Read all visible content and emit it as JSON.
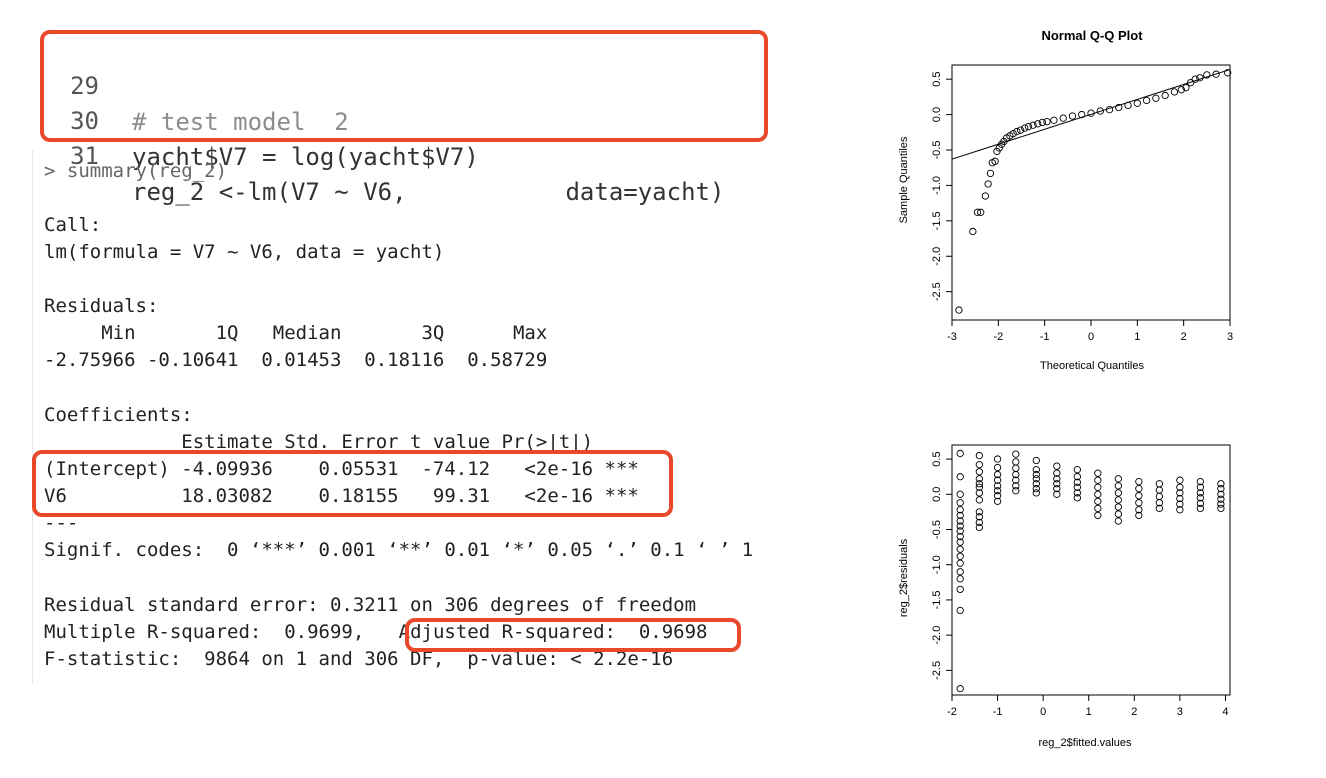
{
  "editor": {
    "lines": [
      {
        "num": "29",
        "text": "# test model  2"
      },
      {
        "num": "30",
        "text": "yacht$V7 = log(yacht$V7)"
      },
      {
        "num": "31",
        "text": "reg_2 <-lm(V7 ~ V6,           data=yacht)"
      }
    ]
  },
  "console": {
    "prompt": ">",
    "command": "summary(reg_2)",
    "call_label": "Call:",
    "call_formula": "lm(formula = V7 ~ V6, data = yacht)",
    "residuals_label": "Residuals:",
    "residuals_header": "     Min       1Q   Median       3Q      Max",
    "residuals_values": "-2.75966 -0.10641  0.01453  0.18116  0.58729",
    "coefficients_label": "Coefficients:",
    "coef_header": "            Estimate Std. Error t value Pr(>|t|)",
    "coef_rows": [
      "(Intercept) -4.09936    0.05531  -74.12   <2e-16 ***",
      "V6          18.03082    0.18155   99.31   <2e-16 ***"
    ],
    "separator": "---",
    "signif_codes": "Signif. codes:  0 ‘***’ 0.001 ‘**’ 0.01 ‘*’ 0.05 ‘.’ 0.1 ‘ ’ 1",
    "rse": "Residual standard error: 0.3211 on 306 degrees of freedom",
    "multiple_r2": "Multiple R-squared:  0.9699,",
    "adjusted_r2": "Adjusted R-squared:  0.9698",
    "fstat": "F-statistic:  9864 on 1 and 306 DF,  p-value: < 2.2e-16"
  },
  "highlight_color": "#e8492b",
  "chart_data": [
    {
      "type": "scatter",
      "title": "Normal Q-Q Plot",
      "xlabel": "Theoretical Quantiles",
      "ylabel": "Sample Quantiles",
      "xlim": [
        -3,
        3
      ],
      "ylim": [
        -2.9,
        0.7
      ],
      "x_ticks": [
        "-3",
        "-2",
        "-1",
        "0",
        "1",
        "2",
        "3"
      ],
      "y_ticks": [
        "-2.5",
        "-2.0",
        "-1.5",
        "-1.0",
        "-0.5",
        "0.0",
        "0.5"
      ],
      "reference_line": {
        "x": [
          -3.1,
          3.3
        ],
        "y": [
          -0.65,
          0.7
        ]
      },
      "points": {
        "x": [
          -2.85,
          -2.55,
          -2.45,
          -2.38,
          -2.28,
          -2.22,
          -2.17,
          -2.13,
          -2.07,
          -2.03,
          -1.98,
          -1.93,
          -1.88,
          -1.82,
          -1.75,
          -1.68,
          -1.6,
          -1.52,
          -1.43,
          -1.35,
          -1.25,
          -1.15,
          -1.05,
          -0.95,
          -0.8,
          -0.6,
          -0.4,
          -0.2,
          0.0,
          0.2,
          0.4,
          0.6,
          0.8,
          1.0,
          1.2,
          1.4,
          1.6,
          1.8,
          1.95,
          2.05,
          2.15,
          2.25,
          2.35,
          2.5,
          2.7,
          2.95
        ],
        "y": [
          -2.76,
          -1.65,
          -1.38,
          -1.38,
          -1.15,
          -0.98,
          -0.83,
          -0.68,
          -0.66,
          -0.52,
          -0.47,
          -0.42,
          -0.38,
          -0.33,
          -0.3,
          -0.27,
          -0.24,
          -0.22,
          -0.19,
          -0.17,
          -0.15,
          -0.13,
          -0.11,
          -0.1,
          -0.08,
          -0.05,
          -0.02,
          0.0,
          0.02,
          0.05,
          0.07,
          0.1,
          0.13,
          0.16,
          0.2,
          0.23,
          0.27,
          0.32,
          0.35,
          0.38,
          0.45,
          0.5,
          0.52,
          0.56,
          0.57,
          0.59
        ]
      }
    },
    {
      "type": "scatter",
      "title": "",
      "xlabel": "reg_2$fitted.values",
      "ylabel": "reg_2$residuals",
      "xlim": [
        -2,
        4.1
      ],
      "ylim": [
        -2.85,
        0.7
      ],
      "x_ticks": [
        "-2",
        "-1",
        "0",
        "1",
        "2",
        "3",
        "4"
      ],
      "y_ticks": [
        "-2.5",
        "-2.0",
        "-1.5",
        "-1.0",
        "-0.5",
        "0.0",
        "0.5"
      ],
      "columns": [
        {
          "x": -1.82,
          "y": [
            0.58,
            0.25,
            0.0,
            -0.12,
            -0.22,
            -0.3,
            -0.38,
            -0.45,
            -0.52,
            -0.6,
            -0.68,
            -0.78,
            -0.88,
            -0.98,
            -1.1,
            -1.2,
            -1.35,
            -1.65,
            -2.76
          ]
        },
        {
          "x": -1.4,
          "y": [
            0.55,
            0.42,
            0.32,
            0.22,
            0.15,
            0.1,
            0.02,
            -0.08,
            -0.25,
            -0.32,
            -0.4,
            -0.47
          ]
        },
        {
          "x": -1.0,
          "y": [
            0.5,
            0.38,
            0.28,
            0.2,
            0.12,
            0.05,
            -0.02,
            -0.1
          ]
        },
        {
          "x": -0.6,
          "y": [
            0.57,
            0.46,
            0.37,
            0.28,
            0.2,
            0.12,
            0.05
          ]
        },
        {
          "x": -0.15,
          "y": [
            0.48,
            0.35,
            0.28,
            0.22,
            0.15,
            0.08,
            0.02
          ]
        },
        {
          "x": 0.3,
          "y": [
            0.4,
            0.3,
            0.22,
            0.15,
            0.08,
            0.0
          ]
        },
        {
          "x": 0.75,
          "y": [
            0.35,
            0.25,
            0.17,
            0.1,
            0.02,
            -0.05
          ]
        },
        {
          "x": 1.2,
          "y": [
            0.3,
            0.2,
            0.1,
            0.0,
            -0.1,
            -0.2,
            -0.3
          ]
        },
        {
          "x": 1.65,
          "y": [
            0.22,
            0.12,
            0.02,
            -0.08,
            -0.18,
            -0.28,
            -0.38
          ]
        },
        {
          "x": 2.1,
          "y": [
            0.18,
            0.08,
            -0.02,
            -0.12,
            -0.22,
            -0.3
          ]
        },
        {
          "x": 2.55,
          "y": [
            0.15,
            0.06,
            -0.03,
            -0.12,
            -0.2
          ]
        },
        {
          "x": 3.0,
          "y": [
            0.2,
            0.1,
            0.02,
            -0.06,
            -0.14,
            -0.22
          ]
        },
        {
          "x": 3.45,
          "y": [
            0.18,
            0.1,
            0.02,
            -0.05,
            -0.13,
            -0.2
          ]
        },
        {
          "x": 3.9,
          "y": [
            0.15,
            0.08,
            0.0,
            -0.07,
            -0.14,
            -0.2
          ]
        }
      ]
    }
  ]
}
